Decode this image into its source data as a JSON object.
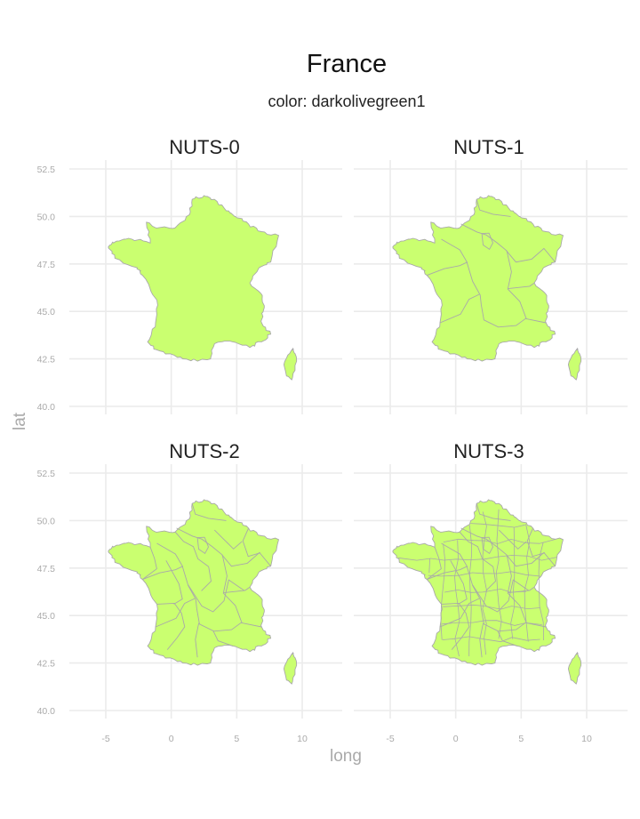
{
  "title": "France",
  "subtitle": "color: darkolivegreen1",
  "axes": {
    "xlabel": "long",
    "ylabel": "lat"
  },
  "colors": {
    "fill": "#caff70",
    "border": "#a9a9a9",
    "grid": "#ebebeb",
    "tick_text": "#aaaaaa"
  },
  "chart_data": {
    "type": "choropleth",
    "facets": [
      "NUTS-0",
      "NUTS-1",
      "NUTS-2",
      "NUTS-3"
    ],
    "x_ticks": [
      -5,
      0,
      5,
      10
    ],
    "y_ticks": [
      40.0,
      42.5,
      45.0,
      47.5,
      50.0,
      52.5
    ],
    "y_tick_labels": [
      "40.0",
      "42.5",
      "45.0",
      "47.5",
      "50.0",
      "52.5"
    ],
    "xlim": [
      -8.5,
      12.5
    ],
    "ylim": [
      39.7,
      52.7
    ],
    "grid": true,
    "fill_color": "darkolivegreen1",
    "outline": [
      [
        2.5,
        51.1
      ],
      [
        3.3,
        50.9
      ],
      [
        4.2,
        50.3
      ],
      [
        4.9,
        50.0
      ],
      [
        5.9,
        49.6
      ],
      [
        6.9,
        49.2
      ],
      [
        8.2,
        49.0
      ],
      [
        7.6,
        47.6
      ],
      [
        6.7,
        47.3
      ],
      [
        6.0,
        46.5
      ],
      [
        6.9,
        45.9
      ],
      [
        7.1,
        45.2
      ],
      [
        6.9,
        44.4
      ],
      [
        7.6,
        43.8
      ],
      [
        6.9,
        43.4
      ],
      [
        6.0,
        43.1
      ],
      [
        4.7,
        43.4
      ],
      [
        3.3,
        43.3
      ],
      [
        3.0,
        42.5
      ],
      [
        1.5,
        42.4
      ],
      [
        0.2,
        42.7
      ],
      [
        -1.2,
        43.0
      ],
      [
        -1.8,
        43.4
      ],
      [
        -1.2,
        44.4
      ],
      [
        -1.1,
        45.6
      ],
      [
        -2.2,
        46.9
      ],
      [
        -2.6,
        47.3
      ],
      [
        -4.3,
        47.8
      ],
      [
        -4.8,
        48.4
      ],
      [
        -4.2,
        48.7
      ],
      [
        -3.0,
        48.8
      ],
      [
        -1.6,
        48.6
      ],
      [
        -1.9,
        49.7
      ],
      [
        -1.0,
        49.4
      ],
      [
        0.3,
        49.4
      ],
      [
        1.4,
        50.1
      ],
      [
        1.6,
        50.9
      ]
    ],
    "corsica": [
      [
        9.3,
        43.0
      ],
      [
        9.55,
        42.6
      ],
      [
        9.45,
        41.9
      ],
      [
        9.2,
        41.4
      ],
      [
        8.8,
        41.6
      ],
      [
        8.6,
        42.2
      ],
      [
        8.9,
        42.7
      ],
      [
        9.3,
        43.0
      ]
    ]
  }
}
